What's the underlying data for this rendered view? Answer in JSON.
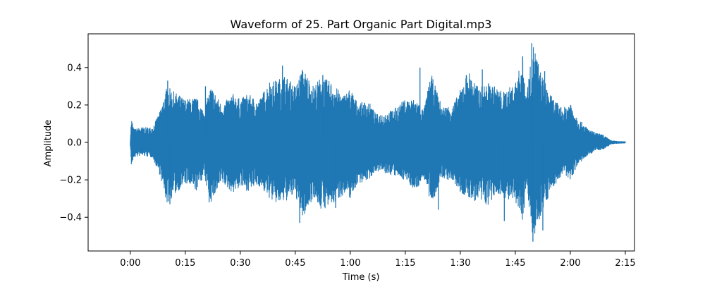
{
  "chart_data": {
    "type": "line",
    "title": "Waveform of 25. Part Organic Part Digital.mp3",
    "xlabel": "Time (s)",
    "ylabel": "Amplitude",
    "xlim": [
      -11.5,
      137.5
    ],
    "ylim": [
      -0.58,
      0.58
    ],
    "x_ticks": [
      {
        "value": 0,
        "label": "0:00"
      },
      {
        "value": 15,
        "label": "0:15"
      },
      {
        "value": 30,
        "label": "0:30"
      },
      {
        "value": 45,
        "label": "0:45"
      },
      {
        "value": 60,
        "label": "1:00"
      },
      {
        "value": 75,
        "label": "1:15"
      },
      {
        "value": 90,
        "label": "1:30"
      },
      {
        "value": 105,
        "label": "1:45"
      },
      {
        "value": 120,
        "label": "2:00"
      },
      {
        "value": 135,
        "label": "2:15"
      }
    ],
    "y_ticks": [
      {
        "value": 0.4,
        "label": "0.4"
      },
      {
        "value": 0.2,
        "label": "0.2"
      },
      {
        "value": 0.0,
        "label": "0.0"
      },
      {
        "value": -0.2,
        "label": "−0.2"
      },
      {
        "value": -0.4,
        "label": "−0.4"
      }
    ],
    "grid": false,
    "legend": "none",
    "series": [
      {
        "color": "#1f77b4",
        "envelope": {
          "x": [
            0,
            0.3,
            1,
            3,
            6,
            8,
            10,
            12,
            15,
            18,
            20,
            22,
            25,
            28,
            30,
            32,
            35,
            38,
            40,
            42,
            45,
            47,
            50,
            52,
            55,
            58,
            60,
            62,
            65,
            67,
            70,
            72,
            75,
            78,
            80,
            82,
            85,
            88,
            90,
            92,
            95,
            98,
            100,
            102,
            105,
            107,
            108,
            110,
            112,
            115,
            118,
            120,
            122,
            125,
            127,
            129,
            131,
            133,
            135
          ],
          "upper": [
            0.02,
            0.13,
            0.07,
            0.08,
            0.08,
            0.16,
            0.3,
            0.27,
            0.23,
            0.24,
            0.17,
            0.3,
            0.2,
            0.26,
            0.23,
            0.26,
            0.22,
            0.33,
            0.33,
            0.36,
            0.3,
            0.4,
            0.3,
            0.35,
            0.32,
            0.25,
            0.29,
            0.21,
            0.22,
            0.15,
            0.16,
            0.18,
            0.23,
            0.23,
            0.17,
            0.37,
            0.19,
            0.2,
            0.28,
            0.39,
            0.29,
            0.32,
            0.29,
            0.27,
            0.32,
            0.45,
            0.26,
            0.53,
            0.37,
            0.24,
            0.18,
            0.22,
            0.13,
            0.07,
            0.05,
            0.04,
            0.01,
            0.005,
            0.004
          ],
          "lower": [
            -0.02,
            -0.13,
            -0.08,
            -0.07,
            -0.08,
            -0.17,
            -0.33,
            -0.28,
            -0.22,
            -0.26,
            -0.18,
            -0.32,
            -0.22,
            -0.27,
            -0.24,
            -0.26,
            -0.23,
            -0.3,
            -0.33,
            -0.32,
            -0.28,
            -0.41,
            -0.29,
            -0.36,
            -0.34,
            -0.28,
            -0.3,
            -0.22,
            -0.2,
            -0.15,
            -0.17,
            -0.18,
            -0.2,
            -0.26,
            -0.18,
            -0.34,
            -0.19,
            -0.21,
            -0.27,
            -0.3,
            -0.32,
            -0.34,
            -0.27,
            -0.3,
            -0.33,
            -0.42,
            -0.25,
            -0.53,
            -0.38,
            -0.25,
            -0.17,
            -0.2,
            -0.12,
            -0.07,
            -0.04,
            -0.04,
            -0.01,
            -0.005,
            -0.004
          ]
        },
        "peaks": [
          {
            "x": 10.2,
            "y": 0.33
          },
          {
            "x": 10.8,
            "y": -0.33
          },
          {
            "x": 20.5,
            "y": 0.3
          },
          {
            "x": 21.5,
            "y": -0.32
          },
          {
            "x": 41.5,
            "y": 0.41
          },
          {
            "x": 46.2,
            "y": -0.43
          },
          {
            "x": 52.5,
            "y": 0.36
          },
          {
            "x": 56,
            "y": -0.35
          },
          {
            "x": 79,
            "y": 0.4
          },
          {
            "x": 84,
            "y": -0.36
          },
          {
            "x": 96,
            "y": 0.39
          },
          {
            "x": 102,
            "y": -0.42
          },
          {
            "x": 107,
            "y": 0.46
          },
          {
            "x": 109.5,
            "y": 0.53
          },
          {
            "x": 109.8,
            "y": -0.53
          },
          {
            "x": 112.5,
            "y": -0.47
          },
          {
            "x": 113,
            "y": 0.38
          }
        ]
      }
    ]
  }
}
